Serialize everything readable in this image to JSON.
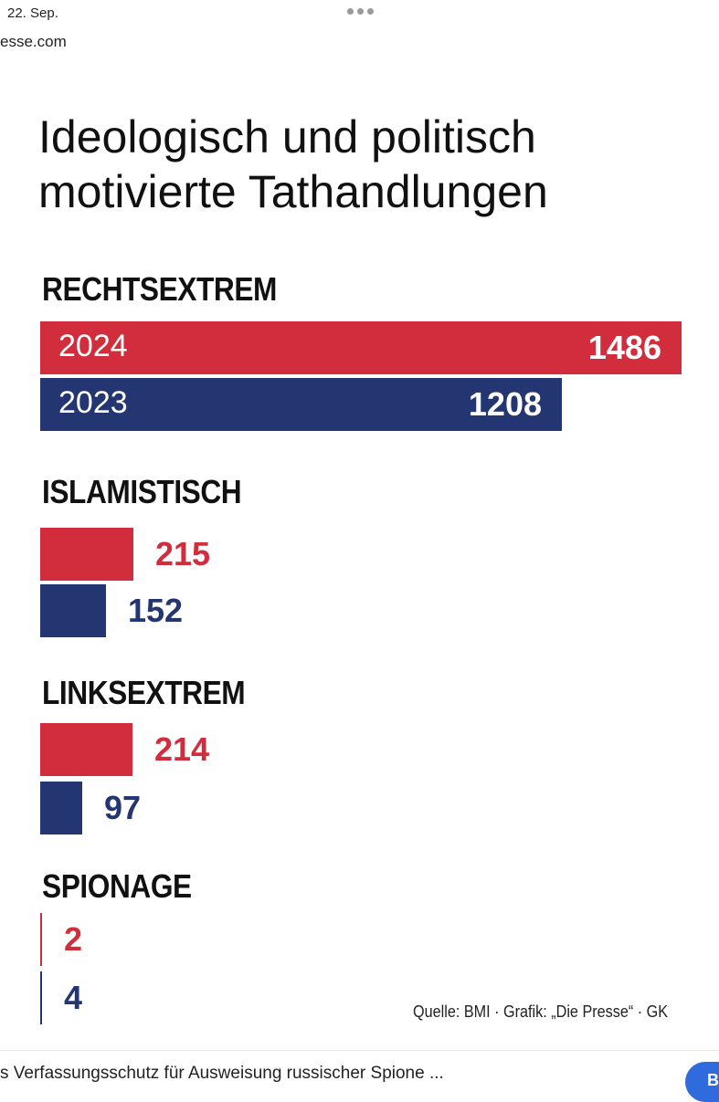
{
  "header": {
    "date": "22. Sep.",
    "source": "esse.com"
  },
  "chart_data": {
    "type": "bar",
    "title_lines": [
      "Ideologisch und politisch",
      "motivierte Tathandlungen"
    ],
    "series": [
      {
        "name": "2024",
        "color": "#d22d3d"
      },
      {
        "name": "2023",
        "color": "#243672"
      }
    ],
    "categories": [
      {
        "label": "RECHTSEXTREM",
        "values": [
          1486,
          1208
        ]
      },
      {
        "label": "ISLAMISTISCH",
        "values": [
          215,
          152
        ]
      },
      {
        "label": "LINKSEXTREM",
        "values": [
          214,
          97
        ]
      },
      {
        "label": "SPIONAGE",
        "values": [
          2,
          4
        ]
      }
    ],
    "max_value": 1486,
    "credit": "Quelle: BMI · Grafik: „Die Presse“ · GK"
  },
  "footer": {
    "article_title": "s Verfassungsschutz für Ausweisung russischer Spione ...",
    "button_label": "Be"
  }
}
